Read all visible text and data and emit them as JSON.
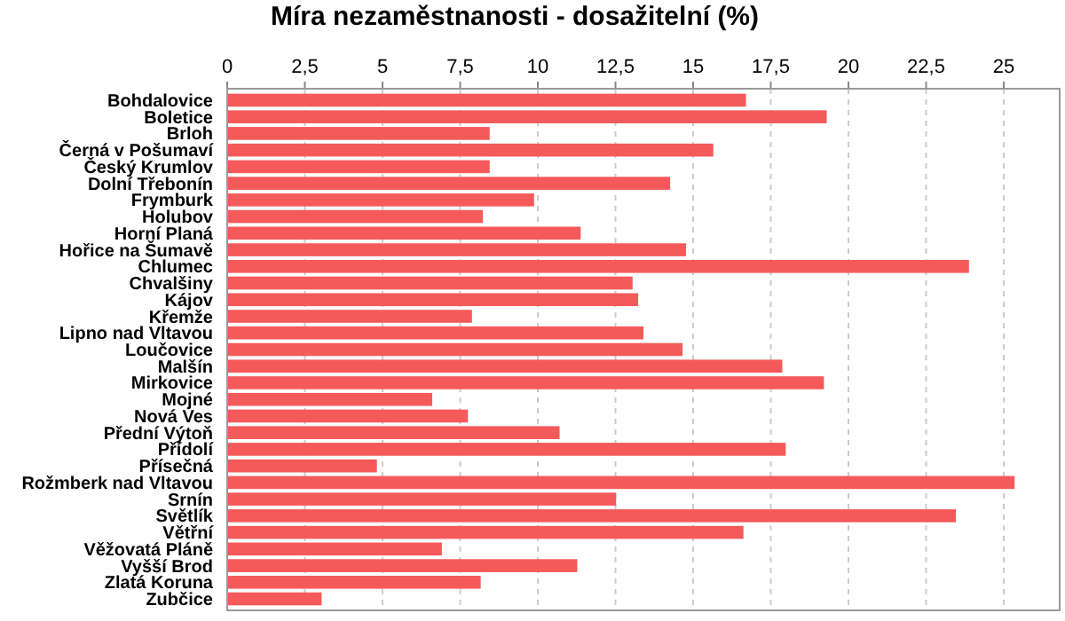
{
  "chart_data": {
    "type": "bar",
    "orientation": "horizontal",
    "title": "Míra nezaměstnanosti - dosažitelní (%)",
    "categories": [
      "Bohdalovice",
      "Boletice",
      "Brloh",
      "Černá v Pošumaví",
      "Český Krumlov",
      "Dolní Třebonín",
      "Frymburk",
      "Holubov",
      "Horní Planá",
      "Hořice na Šumavě",
      "Chlumec",
      "Chvalšiny",
      "Kájov",
      "Křemže",
      "Lipno nad Vltavou",
      "Loučovice",
      "Malšín",
      "Mirkovice",
      "Mojné",
      "Nová Ves",
      "Přední Výtoň",
      "Přídolí",
      "Přísečná",
      "Rožmberk nad Vltavou",
      "Srnín",
      "Světlík",
      "Větřní",
      "Věžovatá Pláně",
      "Vyšší Brod",
      "Zlatá Koruna",
      "Zubčice"
    ],
    "values": [
      16.7,
      19.3,
      8.45,
      15.65,
      8.45,
      14.26,
      9.88,
      8.23,
      11.38,
      14.77,
      23.88,
      13.05,
      13.23,
      7.88,
      13.4,
      14.66,
      17.87,
      19.21,
      6.6,
      7.75,
      10.7,
      17.98,
      4.82,
      25.35,
      12.52,
      23.46,
      16.62,
      6.91,
      11.27,
      8.16,
      3.04
    ],
    "color": "#f55a5a",
    "xlim": [
      0,
      26.8
    ],
    "xticks": [
      0,
      {
        "value": 2.5,
        "label": "2,5"
      },
      5,
      {
        "value": 7.5,
        "label": "7,5"
      },
      10,
      {
        "value": 12.5,
        "label": "12,5"
      },
      15,
      {
        "value": 17.5,
        "label": "17,5"
      },
      20,
      {
        "value": 22.5,
        "label": "22,5"
      },
      25
    ],
    "grid": "x"
  }
}
